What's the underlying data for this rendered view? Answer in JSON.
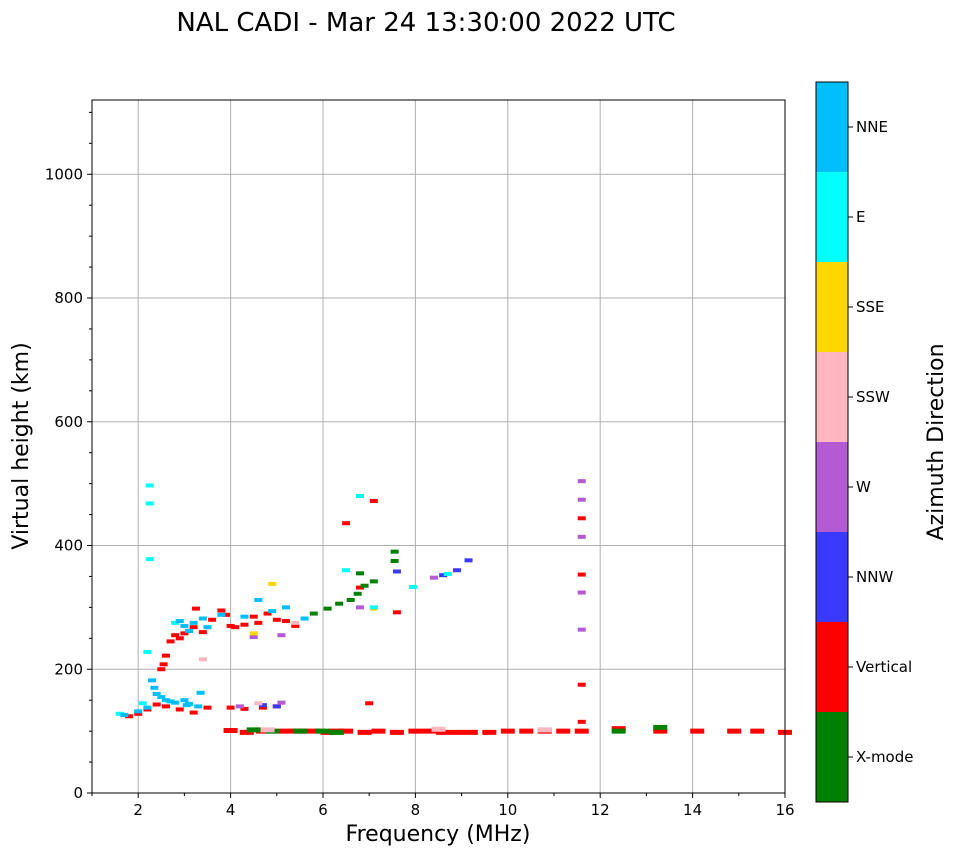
{
  "chart_data": {
    "type": "scatter",
    "title": "NAL CADI - Mar 24 13:30:00 2022 UTC",
    "xlabel": "Frequency (MHz)",
    "ylabel": "Virtual height (km)",
    "xlim": [
      1,
      16
    ],
    "ylim": [
      0,
      1120
    ],
    "xticks": [
      2,
      4,
      6,
      8,
      10,
      12,
      14,
      16
    ],
    "yticks": [
      0,
      200,
      400,
      600,
      800,
      1000
    ],
    "grid": true,
    "colorbar": {
      "label": "Azimuth Direction",
      "categories": [
        {
          "name": "X-mode",
          "color": "#008000"
        },
        {
          "name": "Vertical",
          "color": "#ff0000"
        },
        {
          "name": "NNW",
          "color": "#3a3aff"
        },
        {
          "name": "W",
          "color": "#b45ad2"
        },
        {
          "name": "SSW",
          "color": "#ffb6c1"
        },
        {
          "name": "SSE",
          "color": "#ffd700"
        },
        {
          "name": "E",
          "color": "#00ffff"
        },
        {
          "name": "NNE",
          "color": "#00bfff"
        }
      ]
    },
    "series": [
      {
        "name": "Vertical",
        "points": [
          [
            1.8,
            124
          ],
          [
            2.0,
            128
          ],
          [
            2.2,
            135
          ],
          [
            2.4,
            143
          ],
          [
            2.5,
            200
          ],
          [
            2.55,
            208
          ],
          [
            2.6,
            222
          ],
          [
            2.7,
            245
          ],
          [
            2.8,
            255
          ],
          [
            2.9,
            250
          ],
          [
            3.0,
            258
          ],
          [
            3.1,
            262
          ],
          [
            3.2,
            268
          ],
          [
            3.25,
            298
          ],
          [
            3.4,
            260
          ],
          [
            3.6,
            280
          ],
          [
            3.8,
            295
          ],
          [
            3.9,
            288
          ],
          [
            4.0,
            270
          ],
          [
            4.1,
            268
          ],
          [
            4.3,
            272
          ],
          [
            4.5,
            285
          ],
          [
            4.6,
            275
          ],
          [
            4.8,
            290
          ],
          [
            5.0,
            280
          ],
          [
            5.2,
            278
          ],
          [
            5.4,
            270
          ],
          [
            2.6,
            140
          ],
          [
            2.9,
            135
          ],
          [
            3.2,
            130
          ],
          [
            3.5,
            138
          ],
          [
            4.0,
            138
          ],
          [
            4.3,
            136
          ],
          [
            4.7,
            138
          ],
          [
            5.0,
            140
          ],
          [
            7.0,
            145
          ],
          [
            6.5,
            436
          ],
          [
            7.1,
            472
          ],
          [
            7.6,
            292
          ],
          [
            6.8,
            332
          ],
          [
            11.6,
            444
          ],
          [
            11.6,
            353
          ],
          [
            11.6,
            175
          ],
          [
            11.6,
            115
          ],
          [
            4.0,
            101
          ],
          [
            4.35,
            98
          ],
          [
            4.7,
            100
          ],
          [
            5.2,
            100
          ],
          [
            5.5,
            100
          ],
          [
            5.8,
            100
          ],
          [
            6.1,
            98
          ],
          [
            6.3,
            100
          ],
          [
            6.5,
            100
          ],
          [
            6.9,
            98
          ],
          [
            7.2,
            100
          ],
          [
            7.6,
            98
          ],
          [
            8.0,
            100
          ],
          [
            8.3,
            100
          ],
          [
            8.6,
            98
          ],
          [
            8.9,
            98
          ],
          [
            9.2,
            98
          ],
          [
            9.6,
            98
          ],
          [
            10.0,
            100
          ],
          [
            10.4,
            100
          ],
          [
            10.8,
            100
          ],
          [
            11.2,
            100
          ],
          [
            11.6,
            100
          ],
          [
            12.4,
            104
          ],
          [
            13.3,
            100
          ],
          [
            14.1,
            100
          ],
          [
            14.9,
            100
          ],
          [
            15.4,
            100
          ],
          [
            16.0,
            98
          ]
        ]
      },
      {
        "name": "X-mode",
        "points": [
          [
            5.8,
            290
          ],
          [
            6.1,
            298
          ],
          [
            6.35,
            306
          ],
          [
            6.6,
            312
          ],
          [
            6.75,
            322
          ],
          [
            6.9,
            335
          ],
          [
            7.1,
            342
          ],
          [
            6.8,
            355
          ],
          [
            7.55,
            375
          ],
          [
            7.55,
            390
          ],
          [
            4.5,
            102
          ],
          [
            4.9,
            100
          ],
          [
            5.5,
            100
          ],
          [
            6.0,
            100
          ],
          [
            6.3,
            98
          ],
          [
            12.4,
            100
          ],
          [
            13.3,
            106
          ]
        ]
      },
      {
        "name": "NNW",
        "points": [
          [
            7.6,
            358
          ],
          [
            8.6,
            352
          ],
          [
            8.9,
            360
          ],
          [
            9.15,
            376
          ],
          [
            4.7,
            142
          ],
          [
            5.0,
            140
          ]
        ]
      },
      {
        "name": "W",
        "points": [
          [
            8.4,
            348
          ],
          [
            11.6,
            504
          ],
          [
            11.6,
            474
          ],
          [
            11.6,
            414
          ],
          [
            11.6,
            324
          ],
          [
            11.6,
            264
          ],
          [
            5.1,
            146
          ],
          [
            4.2,
            140
          ],
          [
            4.5,
            252
          ],
          [
            5.1,
            255
          ],
          [
            6.8,
            300
          ]
        ]
      },
      {
        "name": "SSW",
        "points": [
          [
            3.4,
            216
          ],
          [
            4.6,
            145
          ],
          [
            5.4,
            275
          ],
          [
            8.5,
            103
          ],
          [
            10.8,
            102
          ],
          [
            4.8,
            102
          ]
        ]
      },
      {
        "name": "SSE",
        "points": [
          [
            4.9,
            338
          ],
          [
            4.5,
            258
          ],
          [
            7.1,
            298
          ]
        ]
      },
      {
        "name": "E",
        "points": [
          [
            2.25,
            497
          ],
          [
            2.25,
            468
          ],
          [
            2.25,
            378
          ],
          [
            2.2,
            228
          ],
          [
            6.8,
            480
          ],
          [
            6.5,
            360
          ],
          [
            7.1,
            300
          ],
          [
            7.95,
            333
          ],
          [
            8.7,
            354
          ],
          [
            1.6,
            128
          ],
          [
            2.1,
            145
          ],
          [
            2.8,
            275
          ],
          [
            5.6,
            282
          ]
        ]
      },
      {
        "name": "NNE",
        "points": [
          [
            1.7,
            126
          ],
          [
            2.0,
            132
          ],
          [
            2.2,
            138
          ],
          [
            2.3,
            182
          ],
          [
            2.35,
            170
          ],
          [
            2.4,
            160
          ],
          [
            2.5,
            155
          ],
          [
            2.6,
            150
          ],
          [
            2.7,
            148
          ],
          [
            2.8,
            146
          ],
          [
            3.0,
            150
          ],
          [
            3.1,
            144
          ],
          [
            3.3,
            140
          ],
          [
            3.35,
            162
          ],
          [
            2.9,
            278
          ],
          [
            3.0,
            270
          ],
          [
            3.1,
            262
          ],
          [
            3.2,
            275
          ],
          [
            3.4,
            282
          ],
          [
            3.5,
            268
          ],
          [
            3.8,
            288
          ],
          [
            4.3,
            285
          ],
          [
            4.6,
            312
          ],
          [
            4.9,
            294
          ],
          [
            5.2,
            300
          ],
          [
            5.6,
            282
          ],
          [
            3.05,
            142
          ]
        ]
      }
    ]
  }
}
